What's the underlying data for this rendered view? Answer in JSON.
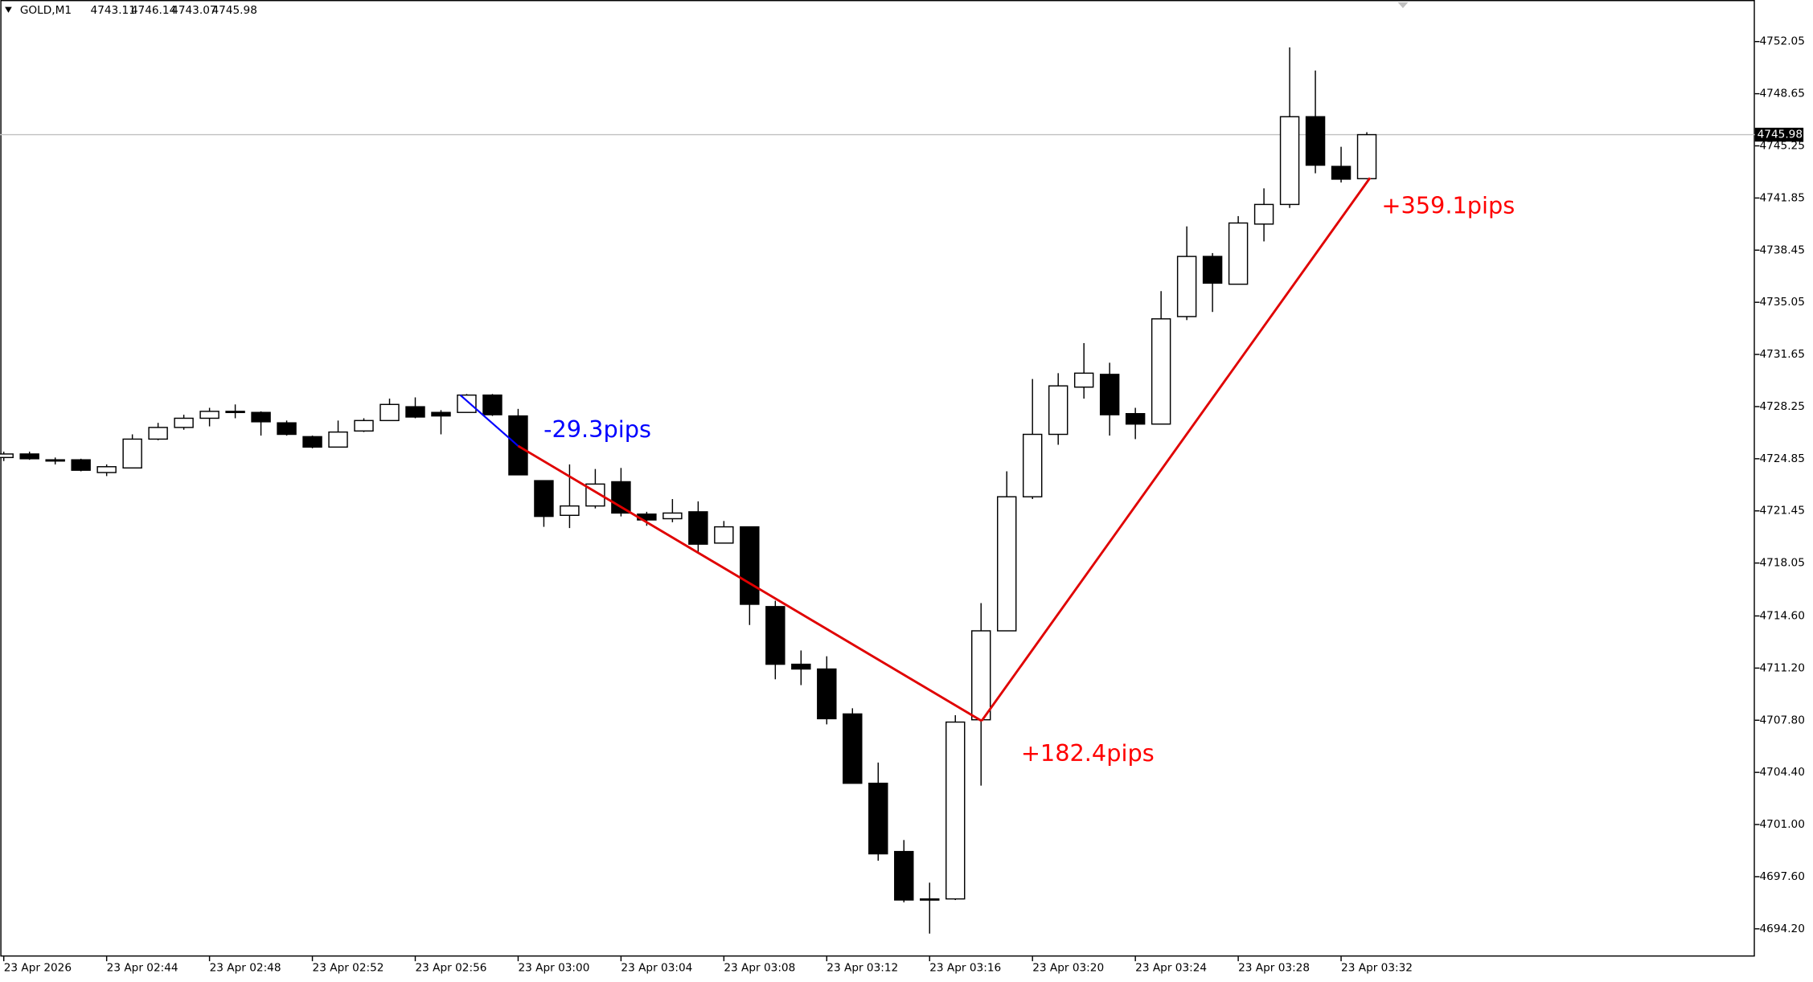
{
  "chart_data": {
    "type": "candlestick",
    "title": "GOLD,M1",
    "categories": [
      "23 Apr 2026",
      null,
      null,
      null,
      "23 Apr 02:44",
      null,
      null,
      null,
      "23 Apr 02:48",
      null,
      null,
      null,
      "23 Apr 02:52",
      null,
      null,
      null,
      "23 Apr 02:56",
      null,
      null,
      null,
      "23 Apr 03:00",
      null,
      null,
      null,
      "23 Apr 03:04",
      null,
      null,
      null,
      "23 Apr 03:08",
      null,
      null,
      null,
      "23 Apr 03:12",
      null,
      null,
      null,
      "23 Apr 03:16",
      null,
      null,
      null,
      "23 Apr 03:20",
      null,
      null,
      null,
      "23 Apr 03:24",
      null,
      null,
      null,
      "23 Apr 03:28",
      null,
      null,
      null,
      "23 Apr 03:32",
      null
    ],
    "open": [
      4724.93,
      4725.16,
      4724.78,
      4724.78,
      4723.95,
      4724.25,
      4726.13,
      4726.89,
      4727.49,
      4727.94,
      4727.87,
      4727.19,
      4726.29,
      4725.61,
      4726.66,
      4727.34,
      4728.24,
      4727.87,
      4727.87,
      4729.0,
      4727.64,
      4723.42,
      4721.16,
      4721.77,
      4723.35,
      4721.24,
      4720.94,
      4721.39,
      4719.35,
      4720.41,
      4715.21,
      4711.45,
      4711.14,
      4708.21,
      4703.69,
      4699.24,
      4696.15,
      4696.15,
      4707.83,
      4713.63,
      4722.37,
      4726.44,
      4729.52,
      4730.35,
      4727.79,
      4727.11,
      4734.12,
      4738.04,
      4736.23,
      4740.15,
      4741.43,
      4747.15,
      4743.91,
      4743.11
    ],
    "high": [
      4725.31,
      4725.31,
      4724.93,
      4724.85,
      4724.48,
      4726.44,
      4727.19,
      4727.72,
      4728.17,
      4728.39,
      4727.94,
      4727.34,
      4726.36,
      4727.34,
      4727.49,
      4728.77,
      4728.85,
      4728.02,
      4729.07,
      4729.07,
      4728.1,
      4723.42,
      4724.48,
      4724.18,
      4724.25,
      4721.39,
      4722.22,
      4722.07,
      4720.79,
      4720.41,
      4715.59,
      4712.35,
      4711.97,
      4708.58,
      4705.04,
      4699.99,
      4697.21,
      4708.13,
      4715.44,
      4724.03,
      4730.05,
      4730.43,
      4732.39,
      4731.11,
      4728.17,
      4735.78,
      4740.0,
      4738.26,
      4740.67,
      4742.48,
      4751.67,
      4750.16,
      4745.19,
      4746.14
    ],
    "low": [
      4724.7,
      4724.78,
      4724.48,
      4724.03,
      4723.72,
      4724.25,
      4726.06,
      4726.74,
      4726.96,
      4727.49,
      4726.36,
      4726.36,
      4725.53,
      4725.61,
      4726.59,
      4727.34,
      4727.49,
      4726.44,
      4727.87,
      4727.64,
      4723.8,
      4720.41,
      4720.33,
      4721.61,
      4721.09,
      4720.48,
      4720.71,
      4718.68,
      4719.35,
      4714.01,
      4710.47,
      4710.09,
      4707.53,
      4703.69,
      4698.64,
      4695.93,
      4693.89,
      4696.08,
      4703.54,
      4713.63,
      4722.22,
      4725.76,
      4728.77,
      4726.36,
      4726.13,
      4727.11,
      4733.89,
      4734.42,
      4736.23,
      4739.02,
      4741.2,
      4743.46,
      4742.86,
      4743.07
    ],
    "close": [
      4725.16,
      4724.85,
      4724.7,
      4724.1,
      4724.33,
      4726.13,
      4726.89,
      4727.49,
      4727.94,
      4727.87,
      4727.26,
      4726.44,
      4725.61,
      4726.59,
      4727.34,
      4728.39,
      4727.57,
      4727.64,
      4729.0,
      4727.72,
      4723.8,
      4721.09,
      4721.77,
      4723.2,
      4721.31,
      4720.86,
      4721.31,
      4719.28,
      4720.41,
      4715.36,
      4711.45,
      4711.14,
      4707.9,
      4703.69,
      4699.09,
      4696.08,
      4696.08,
      4707.68,
      4713.63,
      4722.37,
      4726.44,
      4729.6,
      4730.43,
      4727.72,
      4727.11,
      4733.97,
      4738.04,
      4736.3,
      4740.22,
      4741.43,
      4747.15,
      4743.99,
      4743.08,
      4745.98
    ],
    "up_color": "#ffffff",
    "down_color": "#000000",
    "ylim": [
      4692.39,
      4754.76
    ],
    "yticks": [
      4752.05,
      4748.65,
      4745.25,
      4741.85,
      4738.45,
      4735.05,
      4731.65,
      4728.25,
      4724.85,
      4721.45,
      4718.05,
      {
        "value": 4714.6,
        "label": "4714.60"
      },
      {
        "value": 4711.2,
        "label": "4711.20"
      },
      {
        "value": 4707.8,
        "label": "4707.80"
      },
      {
        "value": 4704.4,
        "label": "4704.40"
      },
      {
        "value": 4701.0,
        "label": "4701.00"
      },
      {
        "value": 4697.6,
        "label": "4697.60"
      },
      {
        "value": 4694.2,
        "label": "4694.20"
      }
    ],
    "grid": false,
    "annotations": [
      {
        "text": "-29.3pips",
        "color": "#0000ff"
      },
      {
        "text": "+182.4pips",
        "color": "#ff0000"
      },
      {
        "text": "+359.1pips",
        "color": "#ff0000"
      }
    ]
  }
}
